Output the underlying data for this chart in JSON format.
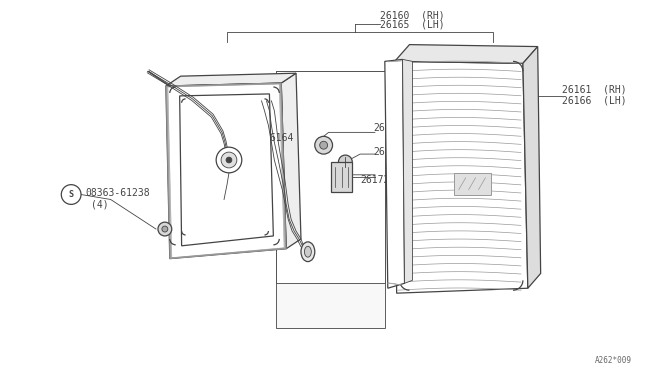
{
  "bg_color": "#ffffff",
  "line_color": "#444444",
  "light_gray": "#bbbbbb",
  "medium_gray": "#999999",
  "dark_gray": "#666666",
  "watermark": "A262*009",
  "label_26160": "26160  (RH)",
  "label_26165": "26165  (LH)",
  "label_26164": "26164",
  "label_26110B": "26110B",
  "label_26110D": "26110D",
  "label_26172B": "26172B",
  "label_26161": "26161  (RH)",
  "label_26166": "26166  (LH)",
  "label_08363": "08363-61238",
  "label_4": "(4)"
}
